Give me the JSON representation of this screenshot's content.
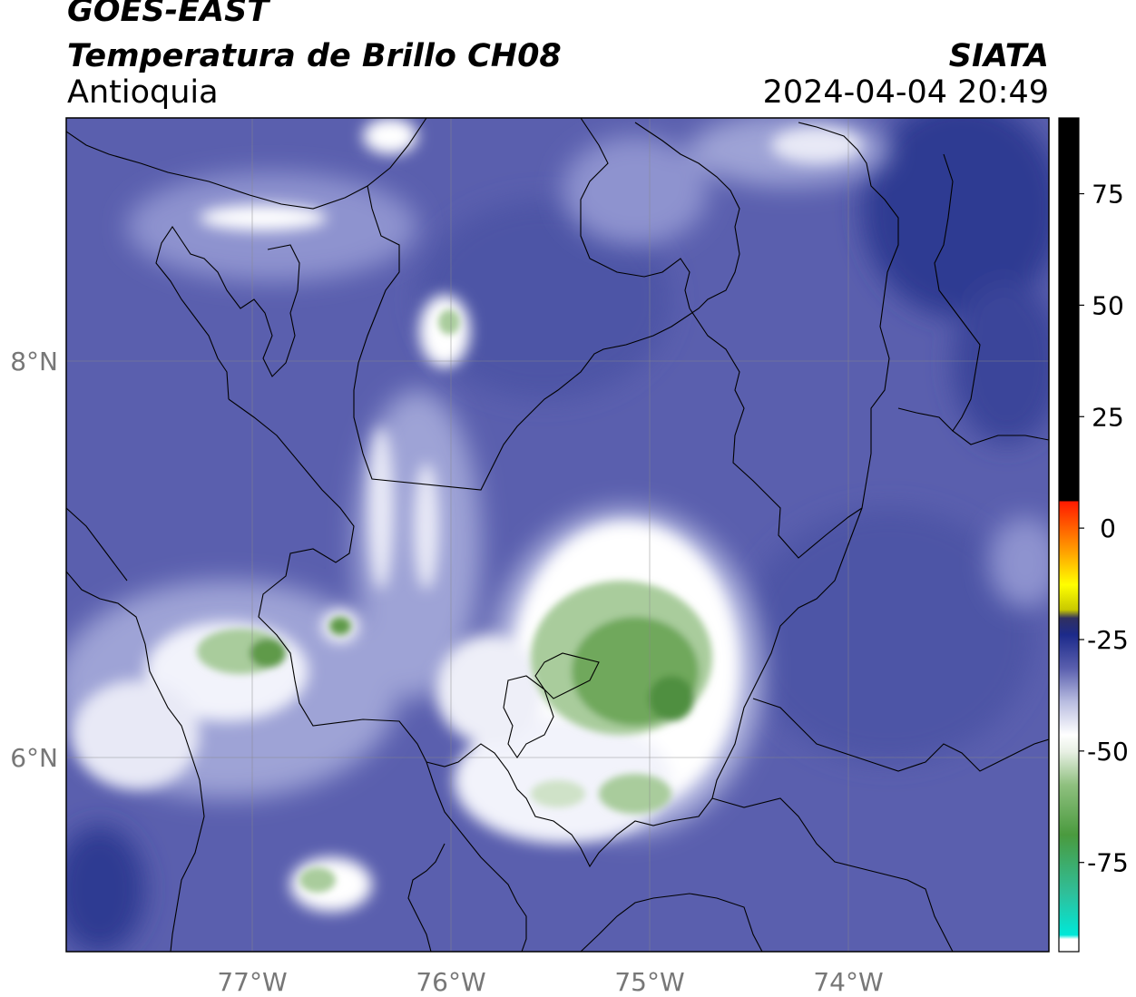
{
  "header": {
    "satellite": "GOES-EAST",
    "product": "Temperatura de Brillo CH08",
    "region": "Antioquia",
    "organization": "SIATA",
    "datetime": "2024-04-04 20:49"
  },
  "axes": {
    "lon_ticks": [
      "77°W",
      "76°W",
      "75°W",
      "74°W"
    ],
    "lat_ticks": [
      "8°N",
      "6°N"
    ],
    "lon_range": [
      -77.94,
      -72.99
    ],
    "lat_range": [
      5.05,
      9.23
    ]
  },
  "colorbar": {
    "ticks": [
      "75",
      "50",
      "25",
      "0",
      "-25",
      "-50",
      "-75"
    ],
    "tick_values": [
      75,
      50,
      25,
      0,
      -25,
      -50,
      -75
    ],
    "range": [
      -95,
      92
    ]
  },
  "colors": {
    "background_cloudfree": "#5a5fae",
    "cold_cloud": "#ffffff",
    "very_cold": "#5e9a4a",
    "border": "#000000"
  }
}
